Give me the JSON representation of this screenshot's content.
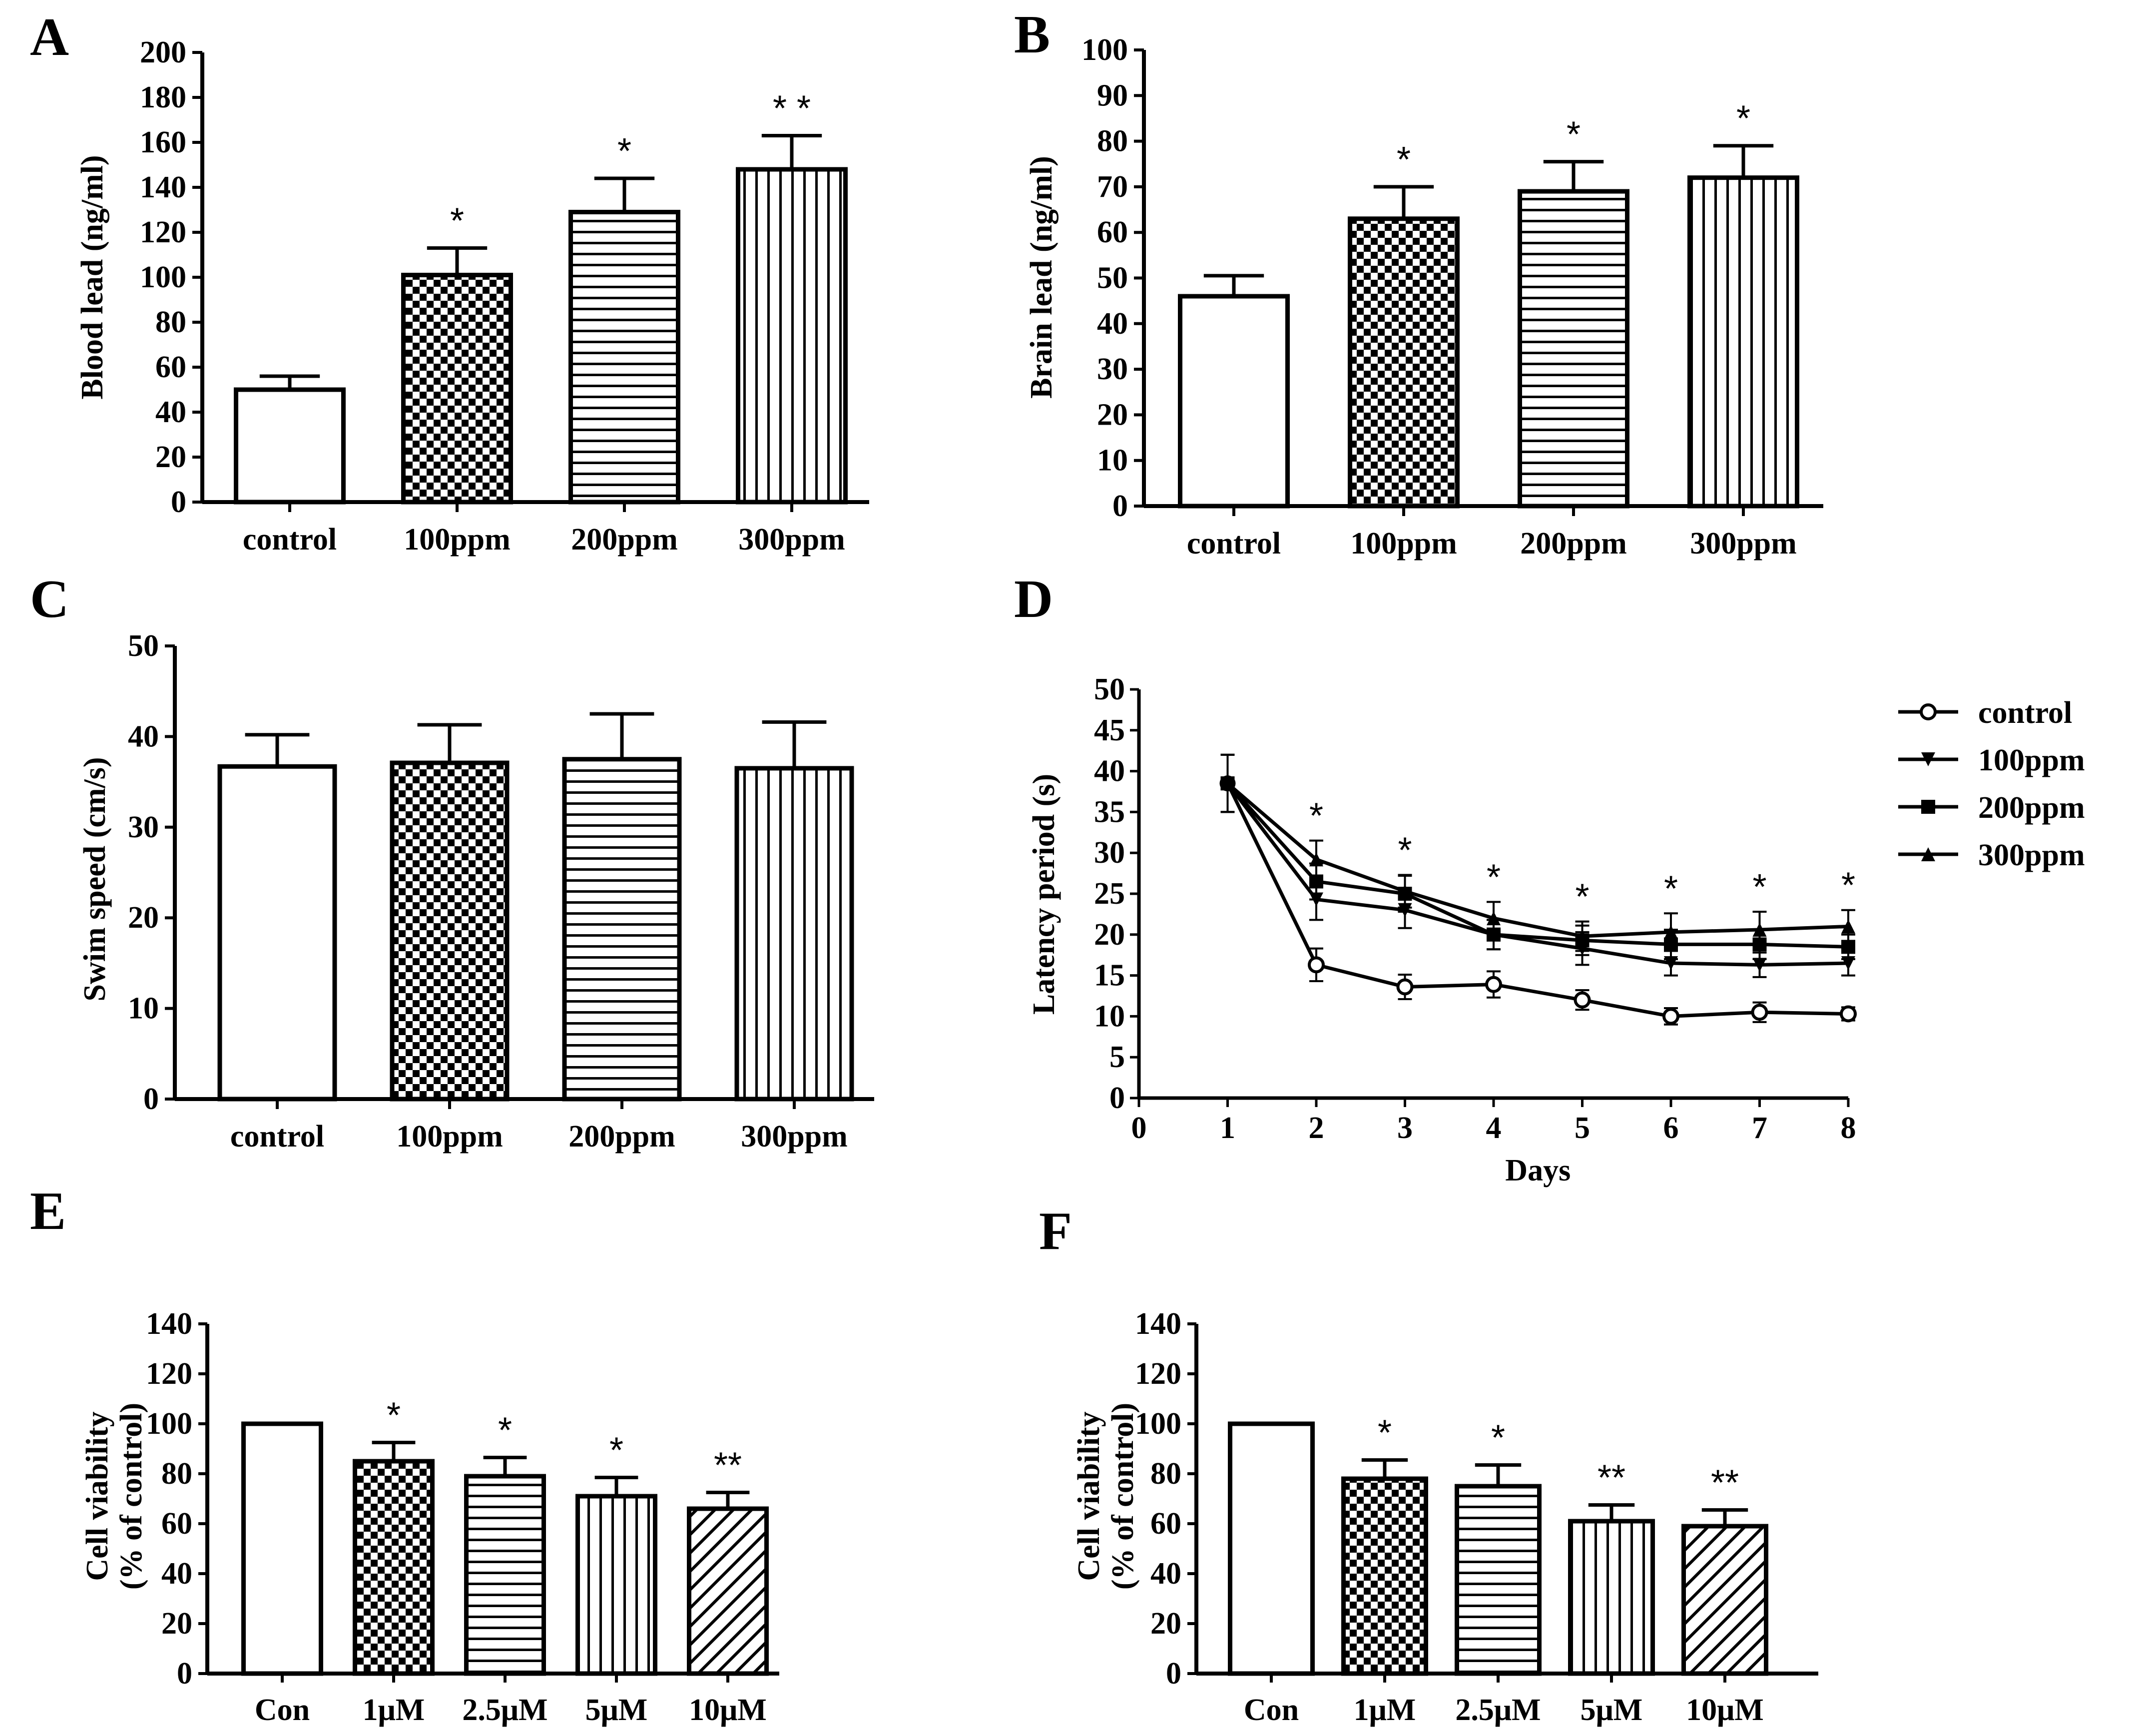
{
  "chart_data": [
    {
      "panel": "A",
      "type": "bar",
      "ylabel": "Blood lead (ng/ml)",
      "categories": [
        "control",
        "100ppm",
        "200ppm",
        "300ppm"
      ],
      "values": [
        50,
        101,
        129,
        148
      ],
      "errors": [
        6,
        12,
        15,
        15
      ],
      "significance": [
        "",
        "*",
        "*",
        "* *"
      ],
      "ylim": [
        0,
        200
      ],
      "yticks": [
        0,
        20,
        40,
        60,
        80,
        100,
        120,
        140,
        160,
        180,
        200
      ],
      "patterns": [
        "none",
        "checker",
        "hlines",
        "vlines"
      ]
    },
    {
      "panel": "B",
      "type": "bar",
      "ylabel": "Brain lead (ng/ml)",
      "categories": [
        "control",
        "100ppm",
        "200ppm",
        "300ppm"
      ],
      "values": [
        46,
        63,
        69,
        72
      ],
      "errors": [
        4.5,
        7,
        6.5,
        7
      ],
      "significance": [
        "",
        "*",
        "*",
        "*"
      ],
      "ylim": [
        0,
        100
      ],
      "yticks": [
        0,
        10,
        20,
        30,
        40,
        50,
        60,
        70,
        80,
        90,
        100
      ],
      "patterns": [
        "none",
        "checker",
        "hlines",
        "vlines"
      ]
    },
    {
      "panel": "C",
      "type": "bar",
      "ylabel": "Swim speed (cm/s)",
      "categories": [
        "control",
        "100ppm",
        "200ppm",
        "300ppm"
      ],
      "values": [
        36.7,
        37.1,
        37.5,
        36.5
      ],
      "errors": [
        3.5,
        4.2,
        5.0,
        5.1
      ],
      "significance": [
        "",
        "",
        "",
        ""
      ],
      "ylim": [
        0,
        50
      ],
      "yticks": [
        0,
        10,
        20,
        30,
        40,
        50
      ],
      "patterns": [
        "none",
        "checker",
        "hlines",
        "vlines"
      ]
    },
    {
      "panel": "D",
      "type": "line",
      "xlabel": "Days",
      "ylabel": "Latency period (s)",
      "x": [
        1,
        2,
        3,
        4,
        5,
        6,
        7,
        8
      ],
      "xlim": [
        0,
        8
      ],
      "xticks": [
        0,
        1,
        2,
        3,
        4,
        5,
        6,
        7,
        8
      ],
      "ylim": [
        0,
        50
      ],
      "yticks": [
        0,
        5,
        10,
        15,
        20,
        25,
        30,
        35,
        40,
        45,
        50
      ],
      "series": [
        {
          "name": "control",
          "marker": "circle",
          "values": [
            38.5,
            16.3,
            13.6,
            13.9,
            12.0,
            10.0,
            10.5,
            10.3
          ],
          "errors": [
            3.5,
            2.0,
            1.5,
            1.6,
            1.2,
            1.0,
            1.2,
            0.8
          ]
        },
        {
          "name": "100ppm",
          "marker": "triangle-down",
          "values": [
            38.5,
            24.3,
            23.0,
            20.0,
            18.3,
            16.5,
            16.3,
            16.5
          ],
          "errors": [
            3.5,
            2.5,
            2.2,
            1.8,
            2.0,
            1.5,
            1.5,
            1.5
          ]
        },
        {
          "name": "200ppm",
          "marker": "square",
          "values": [
            38.5,
            26.5,
            25.0,
            20.0,
            19.3,
            18.8,
            18.8,
            18.5
          ],
          "errors": [
            3.5,
            2.2,
            2.2,
            1.8,
            1.8,
            1.8,
            1.8,
            1.5
          ]
        },
        {
          "name": "300ppm",
          "marker": "triangle-up",
          "values": [
            38.5,
            29.2,
            25.3,
            22.0,
            19.8,
            20.3,
            20.6,
            21.0
          ],
          "errors": [
            3.5,
            2.3,
            2.0,
            2.0,
            1.8,
            2.3,
            2.2,
            2.0
          ]
        }
      ],
      "significance": [
        {
          "x": 2,
          "label": "*"
        },
        {
          "x": 3,
          "label": "*"
        },
        {
          "x": 4,
          "label": "*"
        },
        {
          "x": 5,
          "label": "*"
        },
        {
          "x": 6,
          "label": "*"
        },
        {
          "x": 7,
          "label": "*"
        },
        {
          "x": 8,
          "label": "*"
        }
      ],
      "legend_position": "right"
    },
    {
      "panel": "E",
      "type": "bar",
      "ylabel": [
        "Cell viability",
        "(% of control)"
      ],
      "categories": [
        "Con",
        "1μM",
        "2.5μM",
        "5μM",
        "10μM"
      ],
      "values": [
        100,
        85,
        79,
        71,
        66
      ],
      "errors": [
        0,
        7.5,
        7.5,
        7.5,
        6.5
      ],
      "significance": [
        "",
        "*",
        "*",
        "*",
        "**"
      ],
      "ylim": [
        0,
        150
      ],
      "yticks": [
        0,
        20,
        40,
        60,
        80,
        100,
        120,
        140
      ],
      "patterns": [
        "none",
        "checker",
        "hlines",
        "vlines",
        "diag"
      ]
    },
    {
      "panel": "F",
      "type": "bar",
      "ylabel": [
        "Cell viability",
        "(% of control)"
      ],
      "categories": [
        "Con",
        "1μM",
        "2.5μM",
        "5μM",
        "10μM"
      ],
      "values": [
        100,
        78,
        75,
        61,
        59
      ],
      "errors": [
        0,
        7.5,
        8.5,
        6.5,
        6.5
      ],
      "significance": [
        "",
        "*",
        "*",
        "**",
        "**"
      ],
      "ylim": [
        0,
        150
      ],
      "yticks": [
        0,
        20,
        40,
        60,
        80,
        100,
        120,
        140
      ],
      "patterns": [
        "none",
        "checker",
        "hlines",
        "vlines",
        "diag"
      ]
    }
  ]
}
